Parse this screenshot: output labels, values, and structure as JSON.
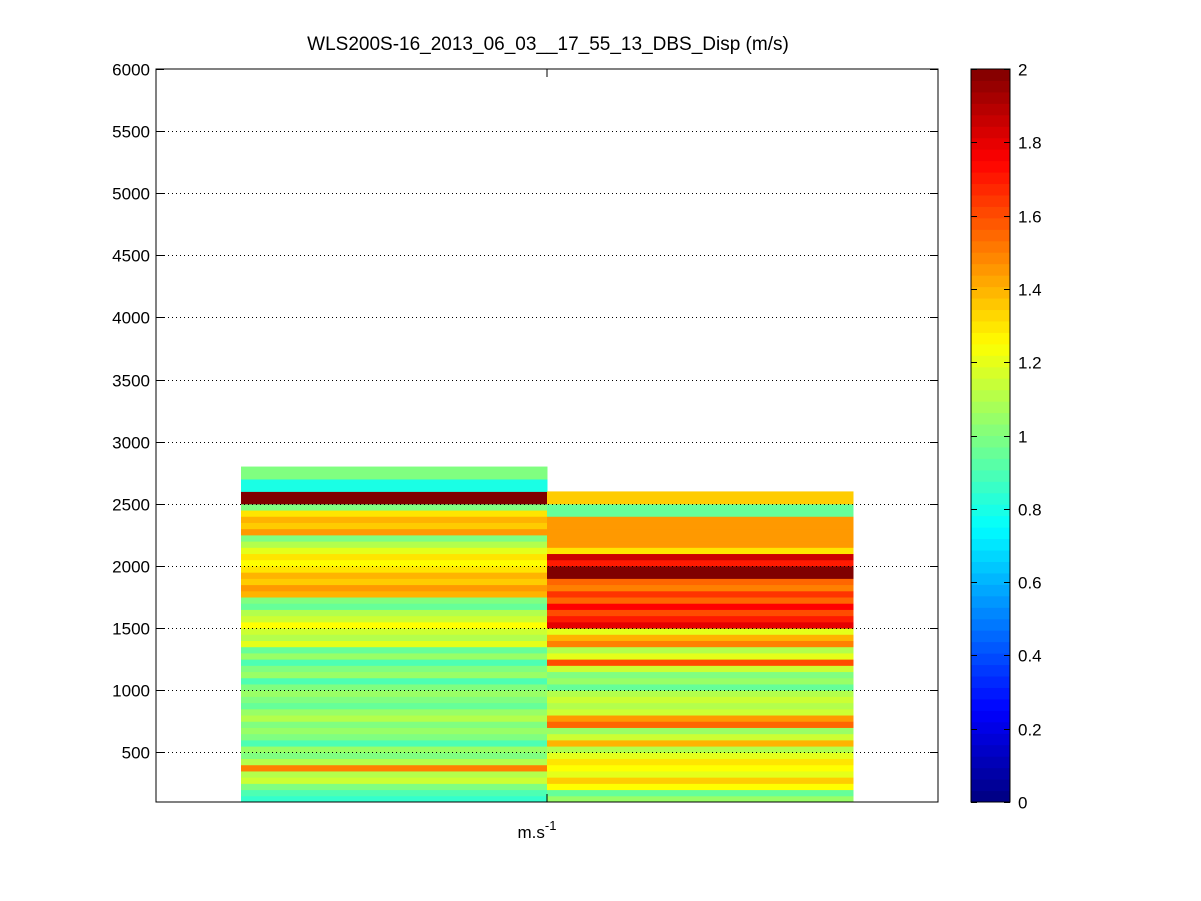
{
  "chart_data": {
    "type": "heatmap",
    "title": "WLS200S-16_2013_06_03__17_55_13_DBS_Disp (m/s)",
    "xlabel": "m.s",
    "xlabel_superscript": "-1",
    "ylabel": "",
    "ylim": [
      100,
      6000
    ],
    "y_ticks": [
      500,
      1000,
      1500,
      2000,
      2500,
      3000,
      3500,
      4000,
      4500,
      5000,
      5500,
      6000
    ],
    "grid": "horizontal dotted",
    "colormap": "jet",
    "colorbar": {
      "min": 0,
      "max": 2,
      "ticks": [
        0,
        0.2,
        0.4,
        0.6,
        0.8,
        1,
        1.2,
        1.4,
        1.6,
        1.8,
        2
      ]
    },
    "bin_size": 50,
    "altitudes": [
      125,
      175,
      225,
      275,
      325,
      375,
      425,
      475,
      525,
      575,
      625,
      675,
      725,
      775,
      825,
      875,
      925,
      975,
      1025,
      1075,
      1125,
      1175,
      1225,
      1275,
      1325,
      1375,
      1425,
      1475,
      1525,
      1575,
      1625,
      1675,
      1725,
      1775,
      1825,
      1875,
      1925,
      1975,
      2025,
      2075,
      2125,
      2175,
      2225,
      2275,
      2325,
      2375,
      2425,
      2475,
      2525,
      2575,
      2625,
      2675,
      2725,
      2775
    ],
    "series": [
      {
        "values": [
          0.85,
          0.9,
          1.0,
          1.15,
          1.1,
          1.5,
          1.1,
          1.0,
          1.05,
          0.9,
          1.0,
          1.05,
          1.0,
          1.1,
          1.05,
          0.95,
          1.0,
          1.05,
          1.0,
          0.9,
          1.05,
          1.0,
          0.9,
          1.05,
          0.95,
          1.2,
          1.1,
          1.15,
          1.25,
          1.15,
          1.1,
          0.95,
          1.0,
          1.4,
          1.45,
          1.35,
          1.4,
          1.3,
          1.25,
          1.3,
          1.2,
          1.1,
          1.0,
          1.45,
          1.35,
          1.4,
          1.3,
          1.0,
          2.0,
          2.0,
          0.8,
          0.8,
          1.0,
          1.0
        ]
      },
      {
        "values": [
          1.05,
          0.95,
          1.25,
          1.35,
          1.2,
          1.25,
          1.3,
          1.2,
          1.1,
          1.4,
          1.15,
          1.05,
          1.55,
          1.45,
          1.15,
          1.1,
          1.15,
          1.1,
          0.95,
          1.05,
          1.0,
          1.15,
          1.6,
          1.2,
          1.1,
          1.5,
          1.4,
          1.2,
          1.8,
          1.7,
          1.6,
          1.75,
          1.55,
          1.65,
          1.5,
          1.55,
          2.0,
          2.0,
          1.7,
          1.85,
          1.3,
          1.45,
          1.45,
          1.45,
          1.45,
          1.45,
          0.95,
          0.95,
          1.35,
          1.35
        ]
      }
    ]
  }
}
